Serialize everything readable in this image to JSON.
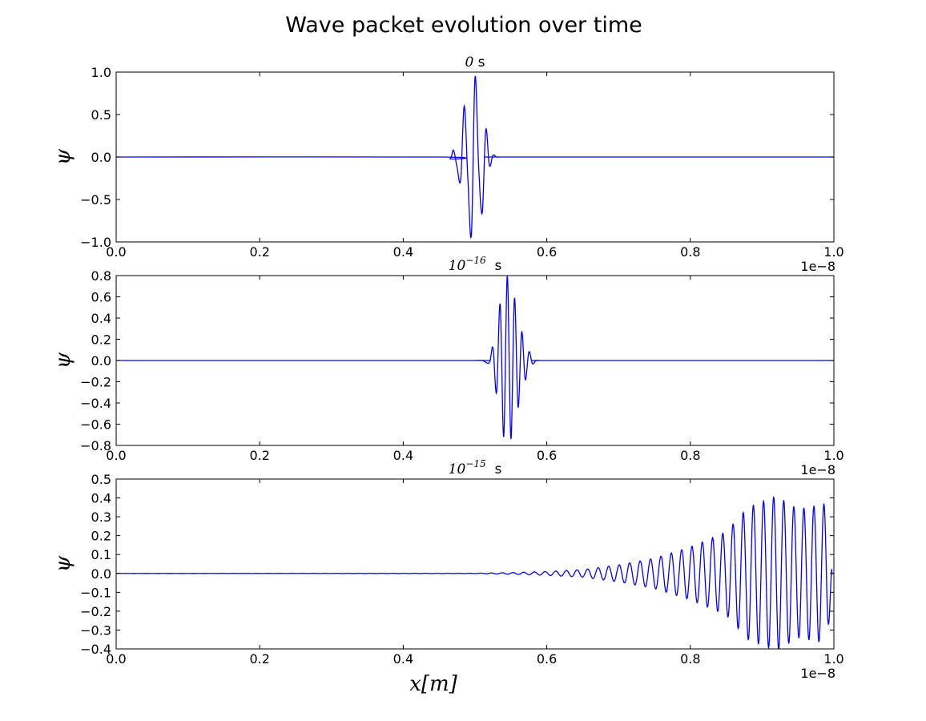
{
  "title": "Wave packet evolution over time",
  "chart_data": [
    {
      "type": "line",
      "title": "0 s",
      "title_base": "0",
      "title_exp": "",
      "title_unit": "s",
      "ylabel": "ψ",
      "xlabel": "",
      "xlim": [
        0.0,
        1.0
      ],
      "ylim": [
        -1.0,
        1.0
      ],
      "x_offset_label": "1e−8",
      "xticks": [
        "0.0",
        "0.2",
        "0.4",
        "0.6",
        "0.8",
        "1.0"
      ],
      "yticks": [
        "−1.0",
        "−0.5",
        "0.0",
        "0.5",
        "1.0"
      ],
      "ytick_values": [
        -1.0,
        -0.5,
        0.0,
        0.5,
        1.0
      ],
      "series": [
        {
          "color": "#0000ff",
          "x": [
            0.0,
            0.45,
            0.465,
            0.47,
            0.475,
            0.48,
            0.485,
            0.49,
            0.495,
            0.5,
            0.505,
            0.51,
            0.515,
            0.52,
            0.525,
            0.53,
            0.535,
            0.55,
            1.0
          ],
          "y": [
            0.0,
            0.0,
            -0.02,
            0.08,
            -0.12,
            -0.27,
            0.6,
            -0.25,
            -0.91,
            0.94,
            -0.1,
            -0.66,
            0.32,
            -0.1,
            0.02,
            0.0,
            0.0,
            0.0,
            0.0
          ]
        }
      ]
    },
    {
      "type": "line",
      "title": "10^-16 s",
      "title_base": "10",
      "title_exp": "−16",
      "title_unit": "s",
      "ylabel": "ψ",
      "xlabel": "",
      "xlim": [
        0.0,
        1.0
      ],
      "ylim": [
        -0.8,
        0.8
      ],
      "x_offset_label": "1e−8",
      "xticks": [
        "0.0",
        "0.2",
        "0.4",
        "0.6",
        "0.8",
        "1.0"
      ],
      "yticks": [
        "−0.8",
        "−0.6",
        "−0.4",
        "−0.2",
        "0.0",
        "0.2",
        "0.4",
        "0.6",
        "0.8"
      ],
      "ytick_values": [
        -0.8,
        -0.6,
        -0.4,
        -0.2,
        0.0,
        0.2,
        0.4,
        0.6,
        0.8
      ],
      "series": [
        {
          "color": "#0000ff",
          "x": [
            0.0,
            0.48,
            0.5,
            0.51,
            0.52,
            0.525,
            0.53,
            0.535,
            0.54,
            0.545,
            0.55,
            0.555,
            0.56,
            0.565,
            0.57,
            0.575,
            0.58,
            0.585,
            0.59,
            0.595,
            0.6,
            0.61,
            1.0
          ],
          "y": [
            0.0,
            0.0,
            0.0,
            0.0,
            -0.02,
            0.12,
            -0.3,
            0.53,
            -0.72,
            0.8,
            -0.74,
            0.59,
            -0.44,
            0.27,
            -0.18,
            0.08,
            -0.03,
            0.0,
            0.0,
            0.0,
            0.0,
            0.0,
            0.0
          ]
        }
      ]
    },
    {
      "type": "line",
      "title": "10^-15 s",
      "title_base": "10",
      "title_exp": "−15",
      "title_unit": "s",
      "ylabel": "ψ",
      "xlabel": "x[m]",
      "xlim": [
        0.0,
        1.0
      ],
      "ylim": [
        -0.4,
        0.5
      ],
      "x_offset_label": "1e−8",
      "xticks": [
        "0.0",
        "0.2",
        "0.4",
        "0.6",
        "0.8",
        "1.0"
      ],
      "yticks": [
        "−0.4",
        "−0.3",
        "−0.2",
        "−0.1",
        "0.0",
        "0.1",
        "0.2",
        "0.3",
        "0.4",
        "0.5"
      ],
      "ytick_values": [
        -0.4,
        -0.3,
        -0.2,
        -0.1,
        0.0,
        0.1,
        0.2,
        0.3,
        0.4,
        0.5
      ],
      "series": [
        {
          "color": "#0000ff",
          "x": [
            0.0,
            0.5,
            0.55,
            0.6,
            0.65,
            0.7,
            0.75,
            0.8,
            0.85,
            0.88,
            0.92,
            0.95,
            0.99,
            1.0
          ],
          "y": [
            0.0,
            0.001,
            0.004,
            0.01,
            0.02,
            0.045,
            0.08,
            0.14,
            0.22,
            0.35,
            0.41,
            0.34,
            0.37,
            0.0
          ],
          "envelope": true
        }
      ]
    }
  ]
}
